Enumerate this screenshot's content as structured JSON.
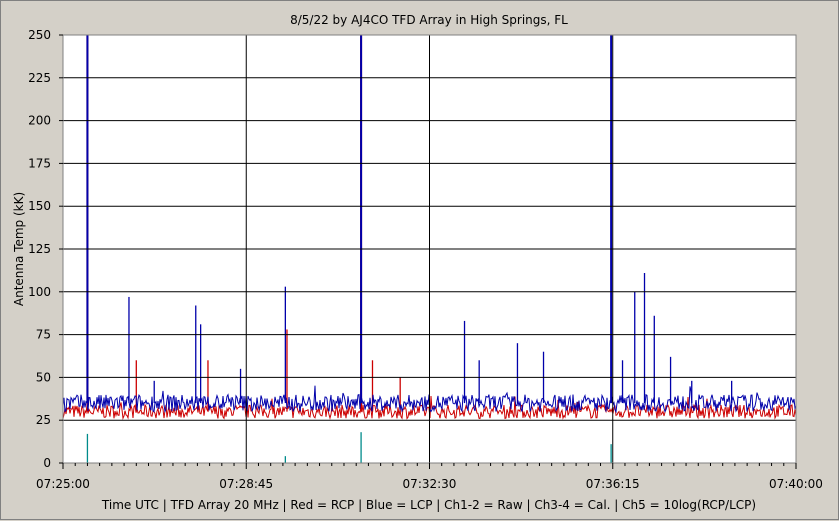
{
  "chart_data": {
    "type": "line",
    "title": "8/5/22  by  AJ4CO TFD Array  in  High Springs, FL",
    "ylabel": "Antenna Temp (kK)",
    "xlabel": "Time UTC | TFD Array 20 MHz | Red = RCP | Blue = LCP | Ch1-2 = Raw | Ch3-4 = Cal. | Ch5 = 10log(RCP/LCP)",
    "ylim": [
      0,
      250
    ],
    "yticks": [
      0,
      25,
      50,
      75,
      100,
      125,
      150,
      175,
      200,
      225,
      250
    ],
    "xrange": [
      "07:25:00",
      "07:40:00"
    ],
    "xticks": [
      "07:25:00",
      "07:28:45",
      "07:32:30",
      "07:36:15",
      "07:40:00"
    ],
    "grid": true,
    "background": "#ffffff",
    "colors": {
      "rcp": "#cc0000",
      "lcp": "#0000aa",
      "ratio": "#008b8b",
      "grid": "#000000"
    },
    "series": [
      {
        "name": "Red = RCP",
        "color": "#cc0000",
        "baseline": 30,
        "spikes": [
          {
            "t": "07:25:30",
            "v": 250
          },
          {
            "t": "07:26:30",
            "v": 60
          },
          {
            "t": "07:27:58",
            "v": 60
          },
          {
            "t": "07:29:35",
            "v": 78
          },
          {
            "t": "07:31:20",
            "v": 60
          },
          {
            "t": "07:31:06",
            "v": 250
          },
          {
            "t": "07:31:54",
            "v": 50
          }
        ]
      },
      {
        "name": "Blue = LCP",
        "color": "#0000aa",
        "baseline": 35,
        "spikes": [
          {
            "t": "07:25:30",
            "v": 250
          },
          {
            "t": "07:26:21",
            "v": 97
          },
          {
            "t": "07:26:52",
            "v": 48
          },
          {
            "t": "07:27:43",
            "v": 92
          },
          {
            "t": "07:27:49",
            "v": 81
          },
          {
            "t": "07:28:38",
            "v": 55
          },
          {
            "t": "07:29:33",
            "v": 103
          },
          {
            "t": "07:31:06",
            "v": 250
          },
          {
            "t": "07:33:13",
            "v": 83
          },
          {
            "t": "07:33:31",
            "v": 60
          },
          {
            "t": "07:34:18",
            "v": 70
          },
          {
            "t": "07:34:50",
            "v": 65
          },
          {
            "t": "07:36:13",
            "v": 250
          },
          {
            "t": "07:36:27",
            "v": 60
          },
          {
            "t": "07:36:42",
            "v": 100
          },
          {
            "t": "07:36:54",
            "v": 111
          },
          {
            "t": "07:37:06",
            "v": 86
          },
          {
            "t": "07:37:26",
            "v": 62
          },
          {
            "t": "07:37:52",
            "v": 48
          },
          {
            "t": "07:38:41",
            "v": 48
          }
        ]
      },
      {
        "name": "Ch5 = 10log(RCP/LCP)",
        "color": "#008b8b",
        "baseline": 0,
        "spikes": [
          {
            "t": "07:25:30",
            "v": 17
          },
          {
            "t": "07:29:33",
            "v": 4
          },
          {
            "t": "07:31:06",
            "v": 18
          },
          {
            "t": "07:36:13",
            "v": 11
          }
        ]
      }
    ]
  }
}
